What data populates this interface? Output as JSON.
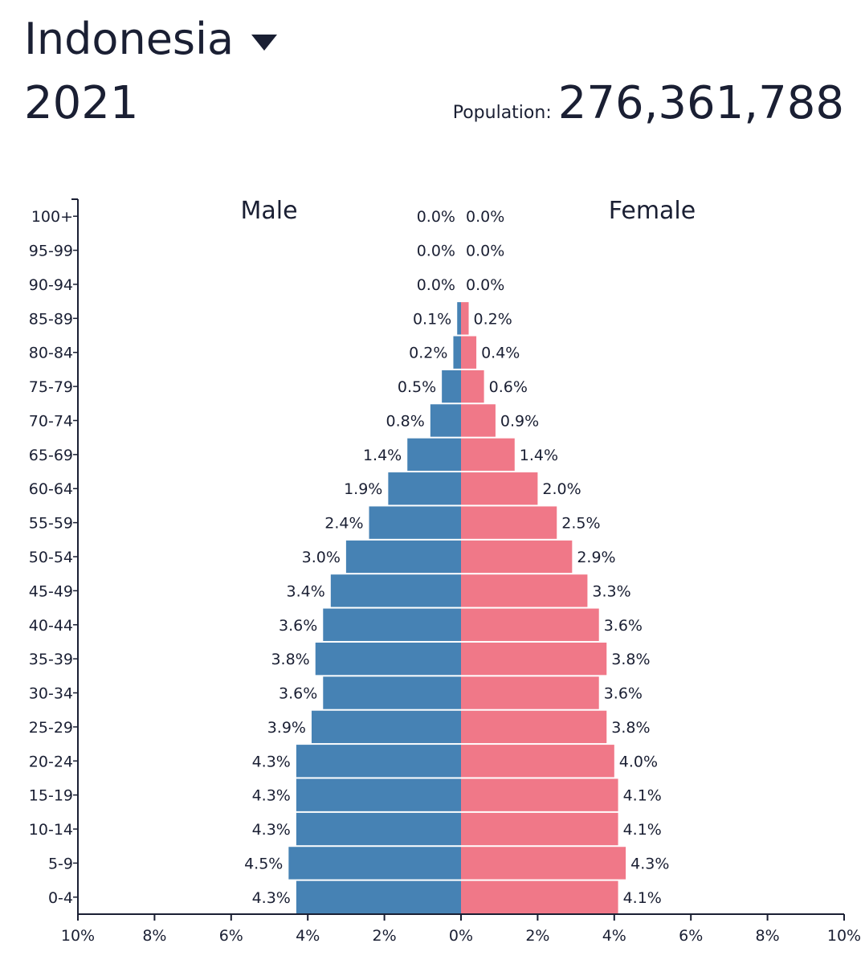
{
  "header": {
    "country": "Indonesia",
    "year": "2021",
    "population_label": "Population:",
    "population_value": "276,361,788"
  },
  "colors": {
    "male": "#4682b4",
    "female": "#f07888"
  },
  "chart_data": {
    "type": "bar",
    "orientation": "horizontal-pyramid",
    "categories": [
      "100+",
      "95-99",
      "90-94",
      "85-89",
      "80-84",
      "75-79",
      "70-74",
      "65-69",
      "60-64",
      "55-59",
      "50-54",
      "45-49",
      "40-44",
      "35-39",
      "30-34",
      "25-29",
      "20-24",
      "15-19",
      "10-14",
      "5-9",
      "0-4"
    ],
    "series": [
      {
        "name": "Male",
        "values": [
          0.0,
          0.0,
          0.0,
          0.1,
          0.2,
          0.5,
          0.8,
          1.4,
          1.9,
          2.4,
          3.0,
          3.4,
          3.6,
          3.8,
          3.6,
          3.9,
          4.3,
          4.3,
          4.3,
          4.5,
          4.3
        ],
        "labels": [
          "0.0%",
          "0.0%",
          "0.0%",
          "0.1%",
          "0.2%",
          "0.5%",
          "0.8%",
          "1.4%",
          "1.9%",
          "2.4%",
          "3.0%",
          "3.4%",
          "3.6%",
          "3.8%",
          "3.6%",
          "3.9%",
          "4.3%",
          "4.3%",
          "4.3%",
          "4.5%",
          "4.3%"
        ]
      },
      {
        "name": "Female",
        "values": [
          0.0,
          0.0,
          0.0,
          0.2,
          0.4,
          0.6,
          0.9,
          1.4,
          2.0,
          2.5,
          2.9,
          3.3,
          3.6,
          3.8,
          3.6,
          3.8,
          4.0,
          4.1,
          4.1,
          4.3,
          4.1
        ],
        "labels": [
          "0.0%",
          "0.0%",
          "0.0%",
          "0.2%",
          "0.4%",
          "0.6%",
          "0.9%",
          "1.4%",
          "2.0%",
          "2.5%",
          "2.9%",
          "3.3%",
          "3.6%",
          "3.8%",
          "3.6%",
          "3.8%",
          "4.0%",
          "4.1%",
          "4.1%",
          "4.3%",
          "4.1%"
        ]
      }
    ],
    "xlim": [
      -10,
      10
    ],
    "xticks": [
      "10%",
      "8%",
      "6%",
      "4%",
      "2%",
      "0%",
      "2%",
      "4%",
      "6%",
      "8%",
      "10%"
    ],
    "grid": false,
    "legend": "top"
  }
}
